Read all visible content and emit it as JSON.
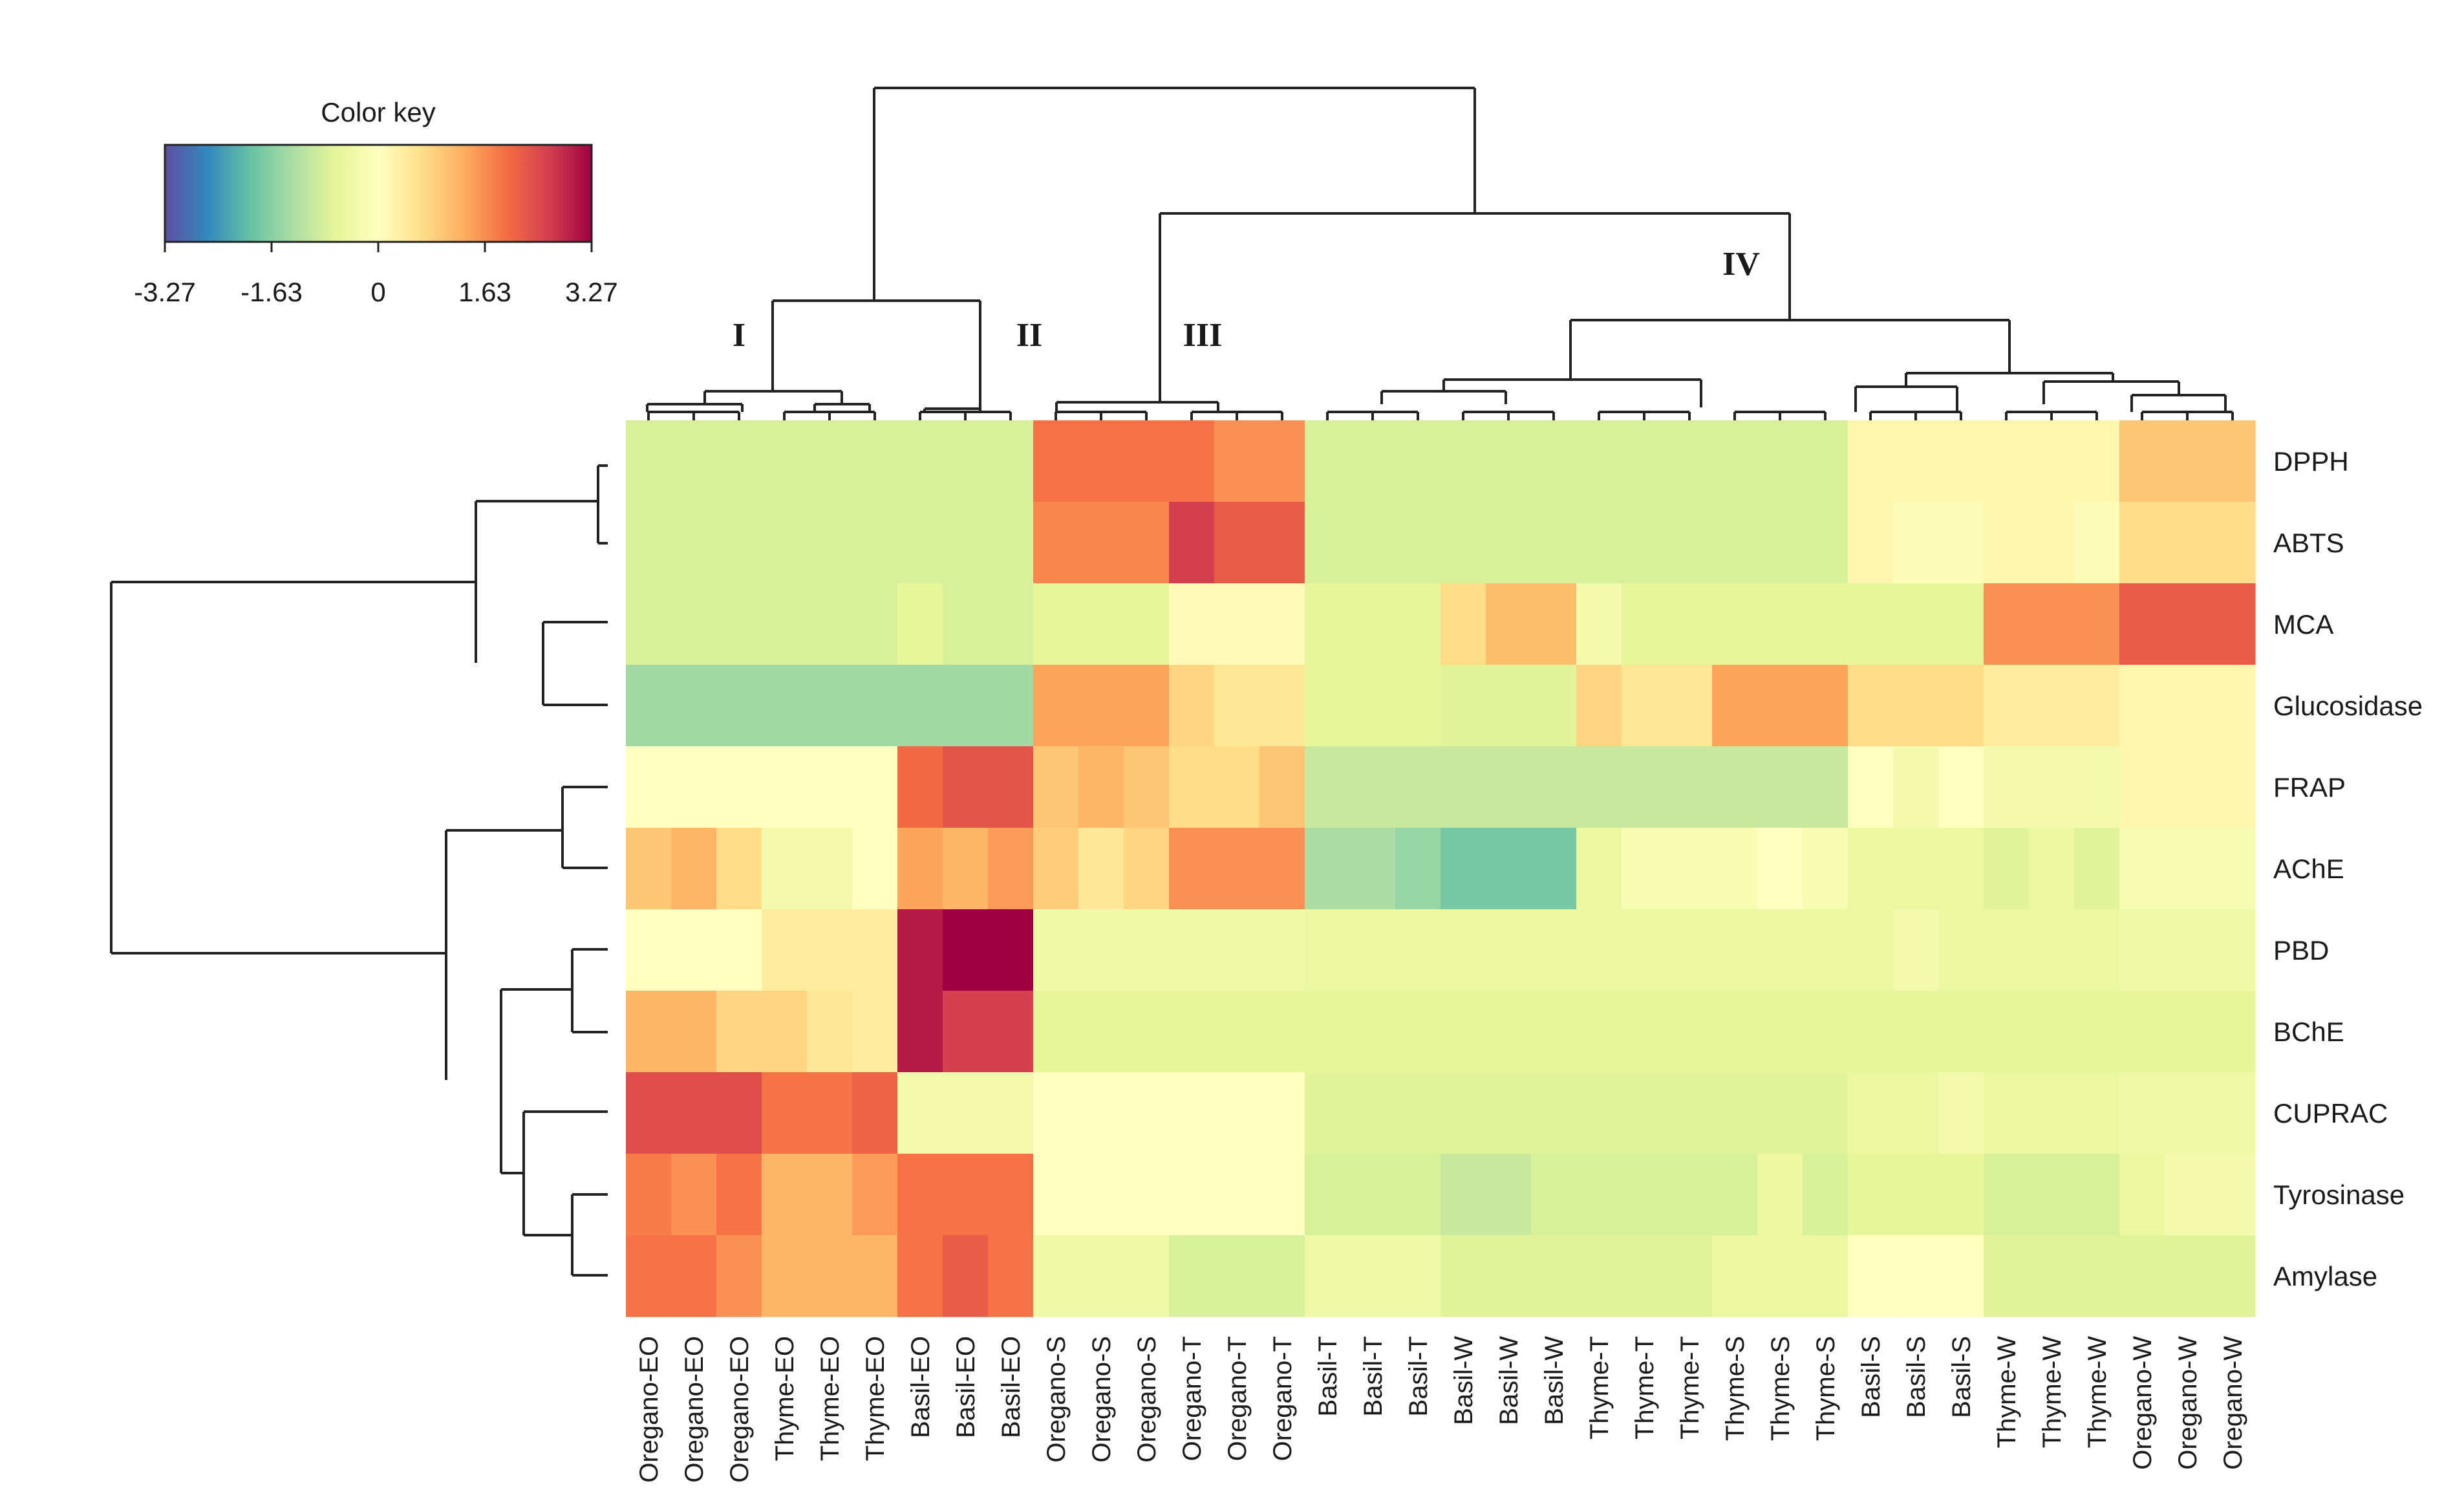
{
  "chart_data": {
    "type": "heatmap",
    "columns": [
      "Oregano-EO",
      "Oregano-EO",
      "Oregano-EO",
      "Thyme-EO",
      "Thyme-EO",
      "Thyme-EO",
      "Basil-EO",
      "Basil-EO",
      "Basil-EO",
      "Oregano-S",
      "Oregano-S",
      "Oregano-S",
      "Oregano-T",
      "Oregano-T",
      "Oregano-T",
      "Basil-T",
      "Basil-T",
      "Basil-T",
      "Basil-W",
      "Basil-W",
      "Basil-W",
      "Thyme-T",
      "Thyme-T",
      "Thyme-T",
      "Thyme-S",
      "Thyme-S",
      "Thyme-S",
      "Basil-S",
      "Basil-S",
      "Basil-S",
      "Thyme-W",
      "Thyme-W",
      "Thyme-W",
      "Oregano-W",
      "Oregano-W",
      "Oregano-W"
    ],
    "rows": [
      "DPPH",
      "ABTS",
      "MCA",
      "Glucosidase",
      "FRAP",
      "AChE",
      "PBD",
      "BChE",
      "CUPRAC",
      "Tyrosinase",
      "Amylase"
    ],
    "values": [
      [
        -0.8,
        -0.8,
        -0.8,
        -0.8,
        -0.8,
        -0.8,
        -0.8,
        -0.8,
        -0.8,
        1.9,
        1.9,
        1.9,
        1.9,
        1.6,
        1.6,
        -0.8,
        -0.8,
        -0.8,
        -0.8,
        -0.8,
        -0.8,
        -0.8,
        -0.8,
        -0.8,
        -0.8,
        -0.8,
        -0.8,
        0.2,
        0.2,
        0.2,
        0.2,
        0.2,
        0.2,
        1.0,
        1.0,
        1.0
      ],
      [
        -0.8,
        -0.8,
        -0.8,
        -0.8,
        -0.8,
        -0.8,
        -0.8,
        -0.8,
        -0.8,
        1.7,
        1.7,
        1.7,
        2.6,
        2.2,
        2.2,
        -0.8,
        -0.8,
        -0.8,
        -0.8,
        -0.8,
        -0.8,
        -0.8,
        -0.8,
        -0.8,
        -0.8,
        -0.8,
        -0.8,
        0.2,
        -0.1,
        -0.1,
        0.2,
        0.2,
        -0.1,
        0.7,
        0.7,
        0.7
      ],
      [
        -0.8,
        -0.8,
        -0.8,
        -0.8,
        -0.8,
        -0.8,
        -0.6,
        -0.8,
        -0.8,
        -0.6,
        -0.6,
        -0.6,
        0.1,
        0.1,
        0.1,
        -0.6,
        -0.6,
        -0.6,
        0.7,
        1.1,
        1.1,
        -0.3,
        -0.6,
        -0.6,
        -0.6,
        -0.6,
        -0.6,
        -0.6,
        -0.6,
        -0.6,
        1.6,
        1.6,
        1.6,
        2.2,
        2.2,
        2.2
      ],
      [
        -1.4,
        -1.4,
        -1.4,
        -1.4,
        -1.4,
        -1.4,
        -1.4,
        -1.4,
        -1.4,
        1.4,
        1.4,
        1.4,
        0.8,
        0.5,
        0.5,
        -0.6,
        -0.6,
        -0.6,
        -0.7,
        -0.7,
        -0.7,
        0.8,
        0.5,
        0.5,
        1.4,
        1.4,
        1.4,
        0.7,
        0.7,
        0.7,
        0.4,
        0.4,
        0.4,
        0.2,
        0.2,
        0.2
      ],
      [
        0.0,
        0.0,
        0.0,
        0.0,
        0.0,
        0.0,
        2.0,
        2.3,
        2.3,
        1.0,
        1.2,
        1.0,
        0.7,
        0.7,
        1.0,
        -1.0,
        -1.0,
        -1.0,
        -1.0,
        -1.0,
        -1.0,
        -1.0,
        -1.0,
        -1.0,
        -1.0,
        -1.0,
        -1.0,
        0.0,
        -0.3,
        0.0,
        -0.3,
        -0.3,
        -0.3,
        0.2,
        0.2,
        0.2
      ],
      [
        1.0,
        1.2,
        0.7,
        -0.3,
        -0.3,
        0.0,
        1.4,
        1.2,
        1.5,
        0.9,
        0.5,
        0.8,
        1.6,
        1.6,
        1.6,
        -1.3,
        -1.3,
        -1.5,
        -1.8,
        -1.8,
        -1.8,
        -0.5,
        -0.2,
        -0.2,
        -0.2,
        0.0,
        -0.2,
        -0.5,
        -0.5,
        -0.5,
        -0.7,
        -0.5,
        -0.7,
        -0.2,
        -0.2,
        -0.2
      ],
      [
        0.0,
        0.0,
        0.0,
        0.4,
        0.4,
        0.4,
        3.0,
        3.3,
        3.3,
        -0.4,
        -0.4,
        -0.4,
        -0.4,
        -0.4,
        -0.4,
        -0.5,
        -0.5,
        -0.5,
        -0.5,
        -0.5,
        -0.5,
        -0.5,
        -0.5,
        -0.5,
        -0.5,
        -0.5,
        -0.5,
        -0.5,
        -0.3,
        -0.5,
        -0.5,
        -0.5,
        -0.5,
        -0.4,
        -0.4,
        -0.4
      ],
      [
        1.2,
        1.2,
        0.8,
        0.8,
        0.5,
        0.4,
        3.0,
        2.6,
        2.6,
        -0.6,
        -0.6,
        -0.6,
        -0.6,
        -0.6,
        -0.6,
        -0.6,
        -0.6,
        -0.6,
        -0.6,
        -0.6,
        -0.6,
        -0.6,
        -0.6,
        -0.6,
        -0.6,
        -0.6,
        -0.6,
        -0.6,
        -0.6,
        -0.6,
        -0.6,
        -0.6,
        -0.6,
        -0.6,
        -0.6,
        -0.6
      ],
      [
        2.4,
        2.4,
        2.4,
        1.9,
        1.9,
        2.1,
        -0.3,
        -0.3,
        -0.3,
        0.0,
        0.0,
        0.0,
        0.0,
        0.0,
        0.0,
        -0.7,
        -0.7,
        -0.7,
        -0.7,
        -0.7,
        -0.7,
        -0.7,
        -0.7,
        -0.7,
        -0.7,
        -0.7,
        -0.7,
        -0.5,
        -0.5,
        -0.3,
        -0.5,
        -0.5,
        -0.5,
        -0.4,
        -0.4,
        -0.4
      ],
      [
        1.8,
        1.6,
        1.9,
        1.2,
        1.2,
        1.5,
        1.9,
        1.9,
        1.9,
        0.0,
        0.0,
        0.0,
        0.0,
        0.0,
        0.0,
        -0.8,
        -0.8,
        -0.8,
        -1.0,
        -1.0,
        -0.8,
        -0.8,
        -0.8,
        -0.8,
        -0.8,
        -0.5,
        -0.8,
        -0.6,
        -0.6,
        -0.6,
        -0.8,
        -0.8,
        -0.8,
        -0.5,
        -0.3,
        -0.3
      ],
      [
        1.9,
        1.9,
        1.6,
        1.2,
        1.2,
        1.2,
        1.9,
        2.2,
        1.9,
        -0.4,
        -0.4,
        -0.4,
        -0.8,
        -0.8,
        -0.8,
        -0.4,
        -0.4,
        -0.4,
        -0.7,
        -0.7,
        -0.7,
        -0.7,
        -0.7,
        -0.7,
        -0.5,
        -0.5,
        -0.5,
        0.0,
        0.0,
        0.0,
        -0.7,
        -0.7,
        -0.7,
        -0.7,
        -0.7,
        -0.7
      ]
    ],
    "color_key": {
      "title": "Color key",
      "ticks": [
        "-3.27",
        "-1.63",
        "0",
        "1.63",
        "3.27"
      ],
      "range": [
        -3.27,
        3.27
      ],
      "palette": [
        "#5E4FA2",
        "#3288BD",
        "#66C2A5",
        "#ABDDA4",
        "#E6F598",
        "#FFFFBF",
        "#FEE08B",
        "#FDAE61",
        "#F46D43",
        "#D53E4F",
        "#9E0142"
      ]
    },
    "cluster_labels": [
      "I",
      "II",
      "III",
      "IV"
    ]
  }
}
